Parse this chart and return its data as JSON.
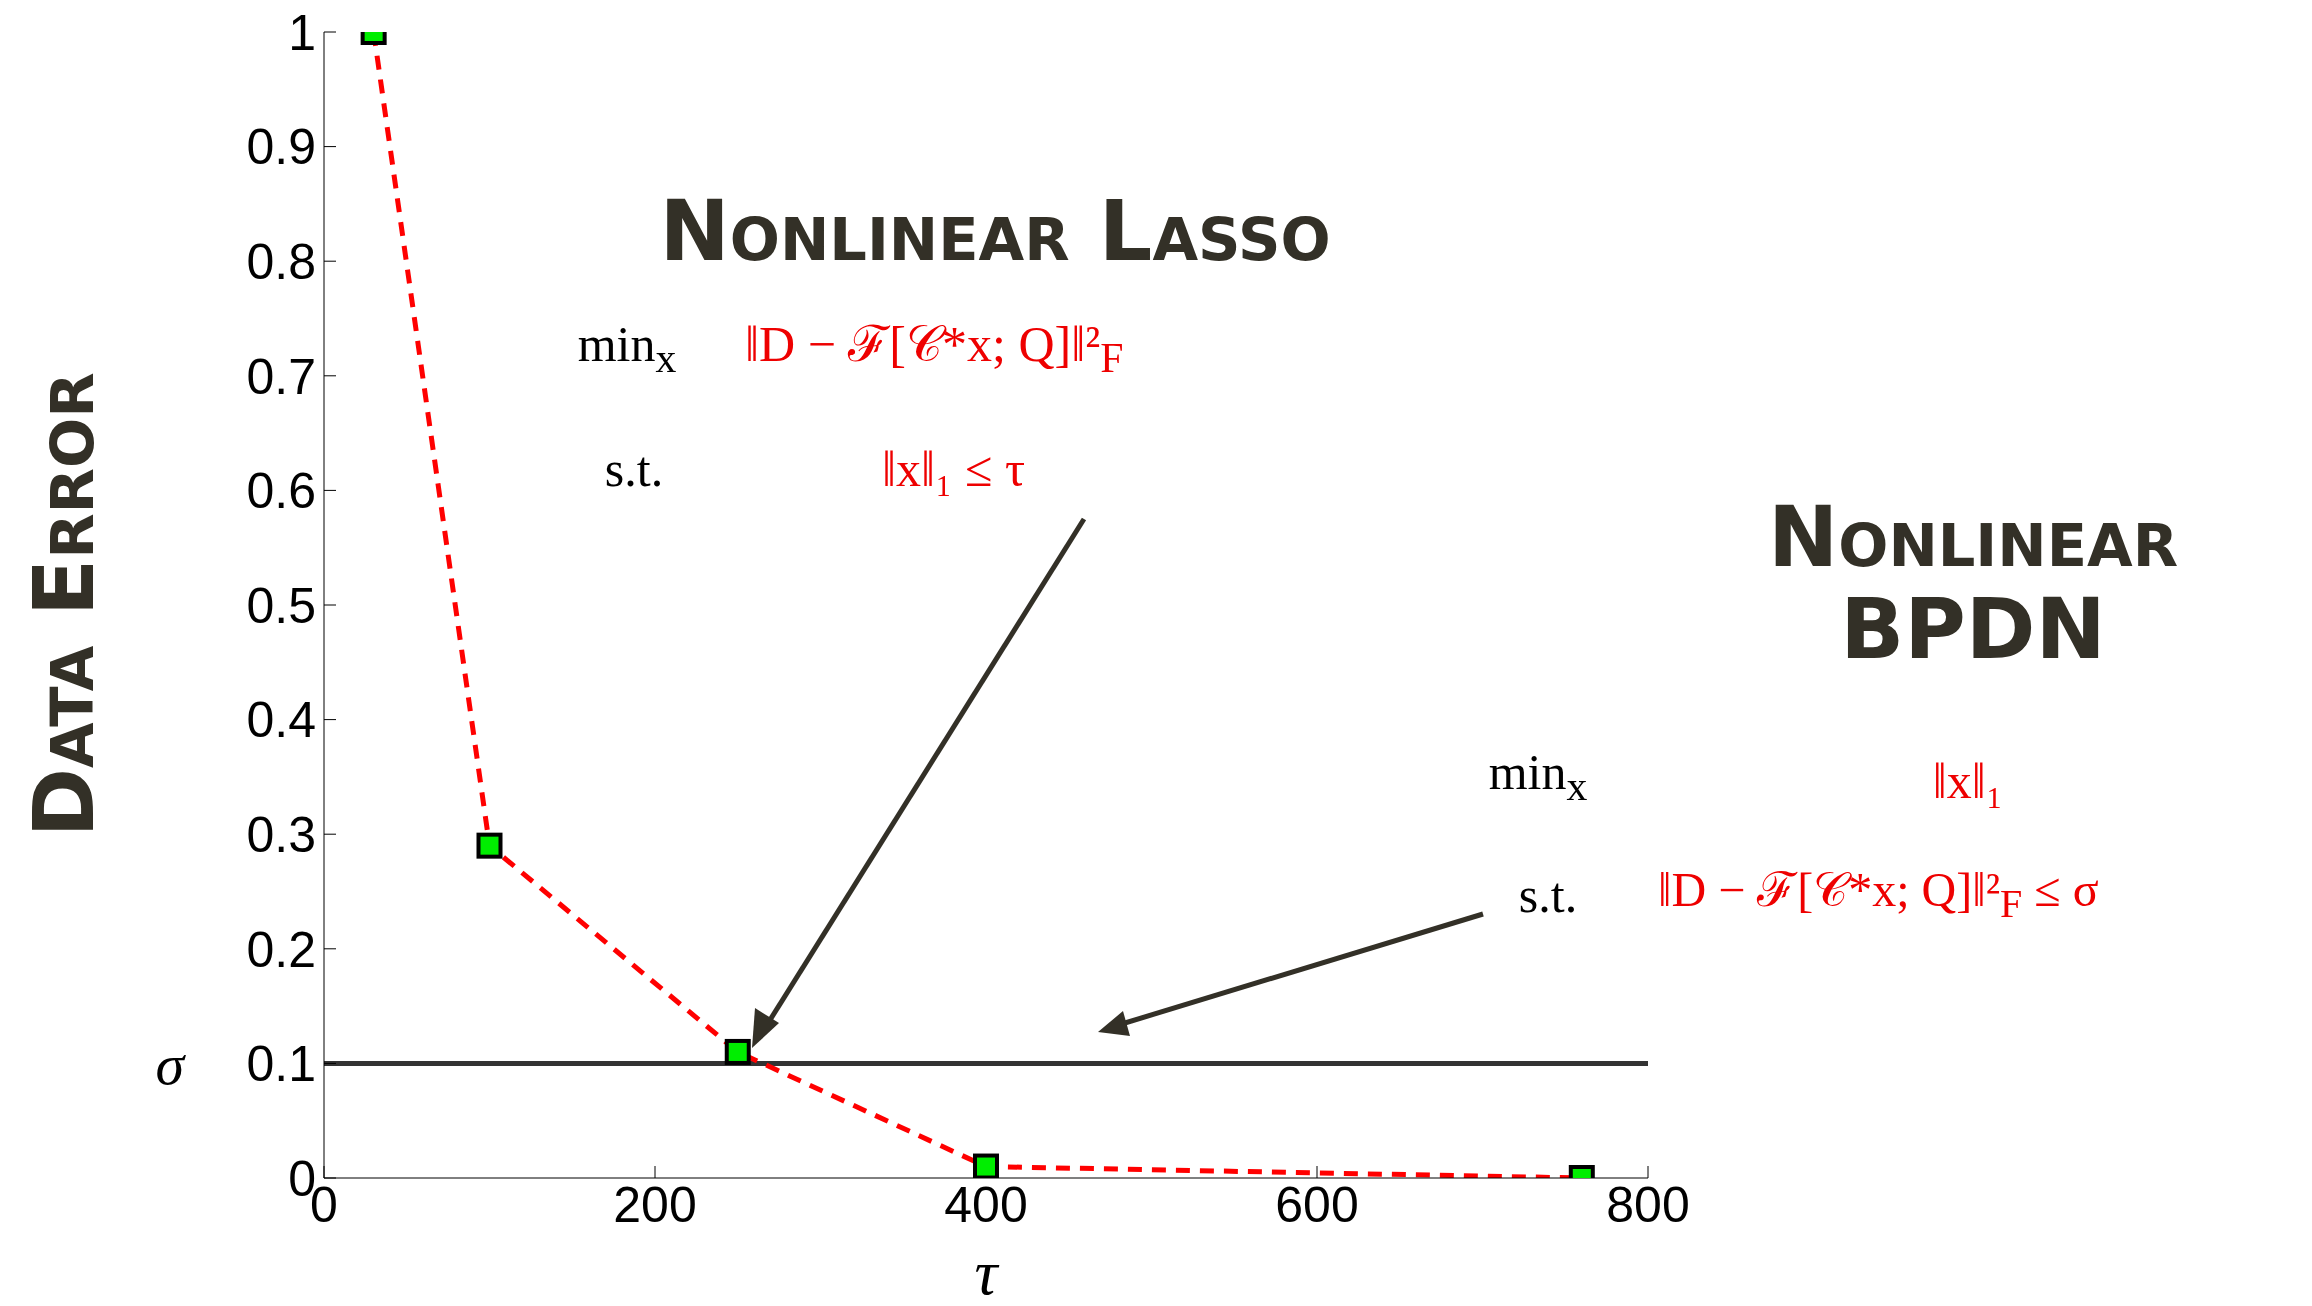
{
  "chart_data": {
    "type": "line",
    "xlabel": "τ",
    "ylabel": "Data Error",
    "x": [
      30,
      100,
      250,
      400,
      760
    ],
    "series": [
      {
        "color": "#ff0000",
        "values": [
          1,
          0.29,
          0.11,
          0.01,
          0
        ]
      }
    ],
    "marker": "square",
    "line_style": "dashed",
    "xlim": [
      0,
      800
    ],
    "xticks": [
      0,
      200,
      400,
      600,
      800
    ],
    "ylim": [
      0,
      1
    ],
    "yticks": [
      0,
      0.1,
      0.2,
      0.3,
      0.4,
      0.5,
      0.6,
      0.7,
      0.8,
      0.9,
      1
    ],
    "ref_lines": [
      {
        "axis": "y",
        "value": 0.1,
        "label": "σ",
        "color": "#333333",
        "line_style": "solid"
      }
    ],
    "annotations": [
      "Nonlinear Lasso",
      "min$_{x}$",
      "‖D − ℱ[𝒞*x; Q]‖²$_{F}$",
      "s.t.",
      "‖x‖₁ ≤ τ",
      "Nonlinear BPDN",
      "min$_{x}$",
      "‖x‖₁",
      "s.t.",
      "‖D − ℱ[𝒞*x; Q]‖²$_{F}$ ≤ σ"
    ]
  }
}
